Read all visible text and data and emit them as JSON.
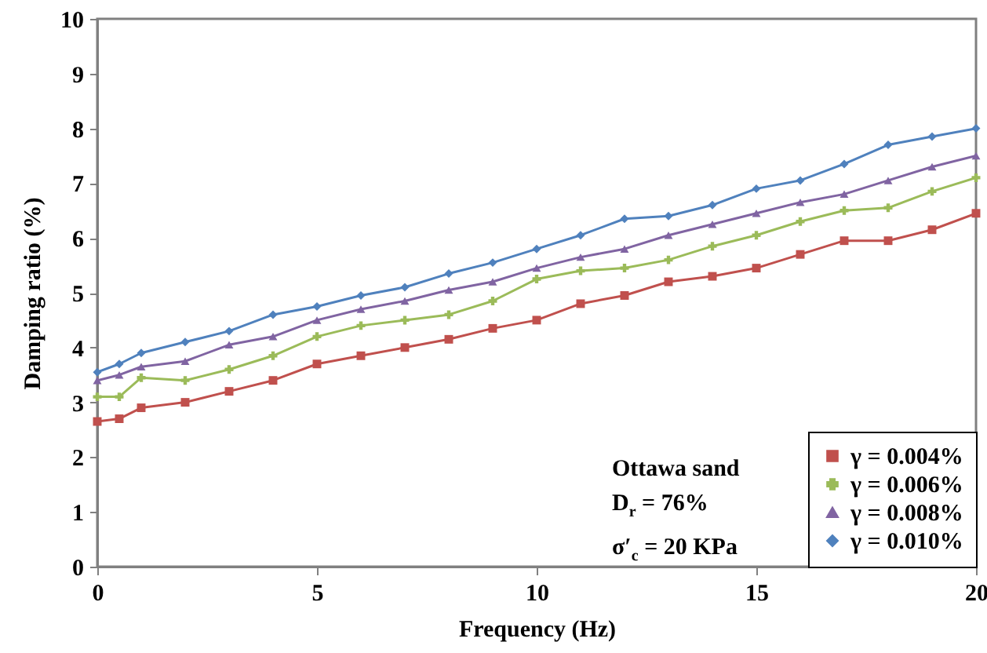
{
  "chart_data": {
    "type": "line",
    "xlabel": "Frequency (Hz)",
    "ylabel": "Damping ratio (%)",
    "x": [
      0,
      0.5,
      1,
      2,
      3,
      4,
      5,
      6,
      7,
      8,
      9,
      10,
      11,
      12,
      13,
      14,
      15,
      16,
      17,
      18,
      19,
      20
    ],
    "series": [
      {
        "name": "γ = 0.004%",
        "color": "#c0504d",
        "marker": "square",
        "values": [
          2.65,
          2.7,
          2.9,
          3.0,
          3.2,
          3.4,
          3.7,
          3.85,
          4.0,
          4.15,
          4.35,
          4.5,
          4.8,
          4.95,
          5.2,
          5.3,
          5.45,
          5.7,
          5.95,
          5.95,
          6.15,
          6.45
        ]
      },
      {
        "name": "γ = 0.006%",
        "color": "#9bbb59",
        "marker": "cross",
        "values": [
          3.1,
          3.1,
          3.45,
          3.4,
          3.6,
          3.85,
          4.2,
          4.4,
          4.5,
          4.6,
          4.85,
          5.25,
          5.4,
          5.45,
          5.6,
          5.85,
          6.05,
          6.3,
          6.5,
          6.55,
          6.85,
          7.1
        ]
      },
      {
        "name": "γ = 0.008%",
        "color": "#8064a2",
        "marker": "triangle",
        "values": [
          3.4,
          3.5,
          3.65,
          3.75,
          4.05,
          4.2,
          4.5,
          4.7,
          4.85,
          5.05,
          5.2,
          5.45,
          5.65,
          5.8,
          6.05,
          6.25,
          6.45,
          6.65,
          6.8,
          7.05,
          7.3,
          7.5
        ]
      },
      {
        "name": "γ = 0.010%",
        "color": "#4f81bd",
        "marker": "diamond",
        "values": [
          3.55,
          3.7,
          3.9,
          4.1,
          4.3,
          4.6,
          4.75,
          4.95,
          5.1,
          5.35,
          5.55,
          5.8,
          6.05,
          6.35,
          6.4,
          6.6,
          6.9,
          7.05,
          7.35,
          7.7,
          7.85,
          8.0
        ]
      }
    ],
    "xlim": [
      0,
      20
    ],
    "xticks": [
      0,
      5,
      10,
      15,
      20
    ],
    "ylim": [
      0,
      10
    ],
    "yticks": [
      0,
      1,
      2,
      3,
      4,
      5,
      6,
      7,
      8,
      9,
      10
    ],
    "grid": false,
    "legend": "bottom right",
    "line_style": "solid",
    "annotations": [
      "Ottawa sand",
      "D$_{r}$ = 76%",
      "σ′$_{c}$ = 20 KPa"
    ]
  }
}
